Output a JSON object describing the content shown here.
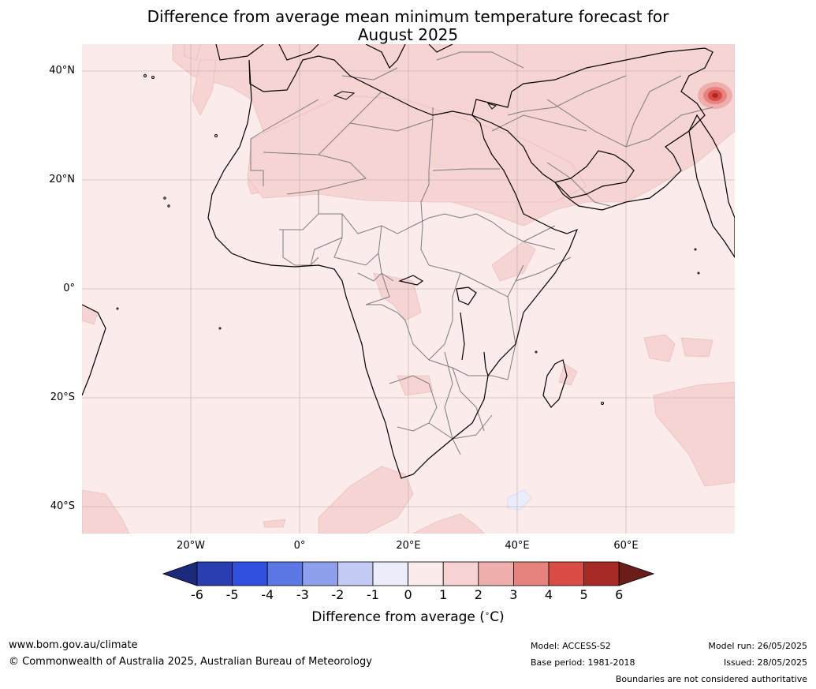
{
  "title_line1": "Difference from average mean minimum temperature forecast for",
  "title_line2": "August 2025",
  "lat_labels": [
    "40°N",
    "20°N",
    "0°",
    "20°S",
    "40°S"
  ],
  "lon_labels": [
    "20°W",
    "0°",
    "20°E",
    "40°E",
    "60°E"
  ],
  "colorbar": {
    "ticks": [
      "-6",
      "-5",
      "-4",
      "-3",
      "-2",
      "-1",
      "0",
      "1",
      "2",
      "3",
      "4",
      "5",
      "6"
    ],
    "colors": [
      "#1b2a7a",
      "#2a3eb1",
      "#3050e0",
      "#5b77e4",
      "#8ea0ec",
      "#c3cbf4",
      "#ebedfb",
      "#fbebea",
      "#f6d3d2",
      "#eeaeac",
      "#e6837f",
      "#d94b43",
      "#a82a24",
      "#6b1d18"
    ],
    "label": "Difference from average ($^\\circ$C)"
  },
  "footer": {
    "website": "www.bom.gov.au/climate",
    "copyright": "© Commonwealth of Australia 2025, Australian Bureau of Meteorology",
    "model": "Model: ACCESS-S2",
    "base_period": "Base period: 1981-2018",
    "model_run": "Model run: 26/05/2025",
    "issued": "Issued: 28/05/2025",
    "disclaimer": "Boundaries are not considered authoritative"
  }
}
